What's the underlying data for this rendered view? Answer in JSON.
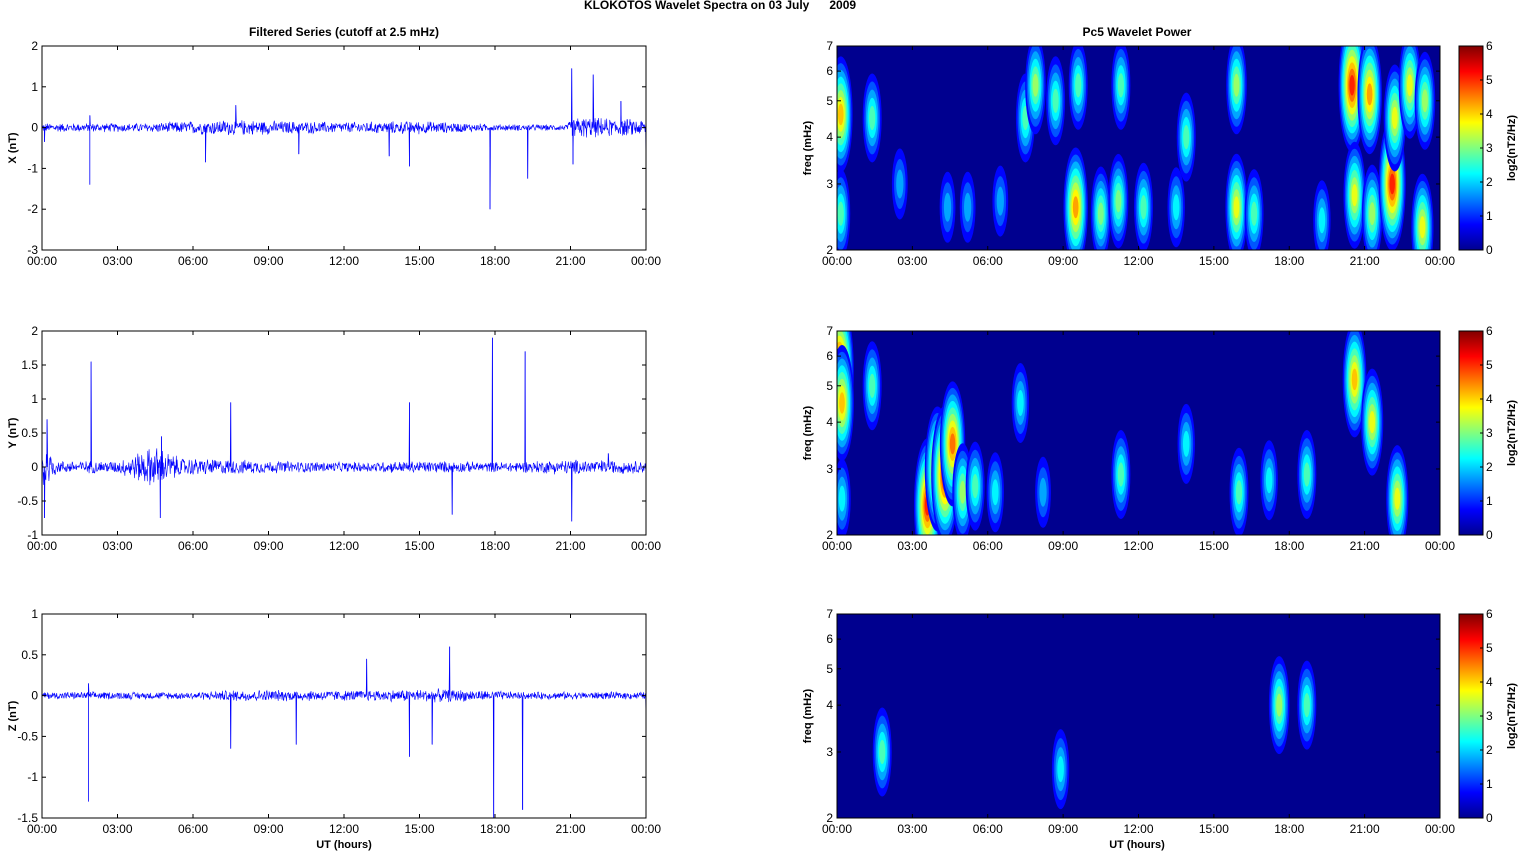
{
  "figure_title": "KLOKOTOS Wavelet Spectra on 03 July      2009",
  "left_title": "Filtered Series (cutoff at 2.5 mHz)",
  "right_title": "Pc5 Wavelet Power",
  "x_label": "UT (hours)",
  "x_tick_labels": [
    "00:00",
    "03:00",
    "06:00",
    "09:00",
    "12:00",
    "15:00",
    "18:00",
    "21:00",
    "00:00"
  ],
  "colors": {
    "trace": "#0000ff",
    "background_power": "#00008f"
  },
  "chart_data": [
    {
      "type": "line",
      "name": "X component",
      "ylabel": "X (nT)",
      "ylim": [
        -3,
        2
      ],
      "yticks": [
        "2",
        "1",
        "0",
        "-1",
        "-2",
        "-3"
      ],
      "ytick_values": [
        2,
        1,
        0,
        -1,
        -2,
        -3
      ],
      "xlim_hours": [
        0,
        24
      ],
      "noise_envelope": [
        {
          "x": 0.0,
          "amp": 0.12
        },
        {
          "x": 4.0,
          "amp": 0.12
        },
        {
          "x": 7.5,
          "amp": 0.22
        },
        {
          "x": 9.5,
          "amp": 0.18
        },
        {
          "x": 12.0,
          "amp": 0.15
        },
        {
          "x": 15.0,
          "amp": 0.18
        },
        {
          "x": 18.0,
          "amp": 0.09
        },
        {
          "x": 20.8,
          "amp": 0.08
        },
        {
          "x": 21.2,
          "amp": 0.3
        },
        {
          "x": 22.5,
          "amp": 0.25
        },
        {
          "x": 24.0,
          "amp": 0.22
        }
      ],
      "spikes": [
        {
          "x": 0.1,
          "y": -0.35
        },
        {
          "x": 1.9,
          "y": -1.4
        },
        {
          "x": 1.9,
          "y": 0.3
        },
        {
          "x": 6.5,
          "y": -0.85
        },
        {
          "x": 7.7,
          "y": 0.55
        },
        {
          "x": 10.2,
          "y": -0.65
        },
        {
          "x": 13.8,
          "y": -0.7
        },
        {
          "x": 14.6,
          "y": -0.95
        },
        {
          "x": 17.8,
          "y": -2.0
        },
        {
          "x": 19.3,
          "y": -1.25
        },
        {
          "x": 21.05,
          "y": 1.45
        },
        {
          "x": 21.1,
          "y": -0.9
        },
        {
          "x": 21.9,
          "y": 1.3
        },
        {
          "x": 23.0,
          "y": 0.65
        },
        {
          "x": 24.0,
          "y": -1.15
        }
      ]
    },
    {
      "type": "line",
      "name": "Y component",
      "ylabel": "Y (nT)",
      "ylim": [
        -1,
        2
      ],
      "yticks": [
        "2",
        "1.5",
        "1",
        "0.5",
        "0",
        "-0.5",
        "-1"
      ],
      "ytick_values": [
        2,
        1.5,
        1,
        0.5,
        0,
        -0.5,
        -1
      ],
      "xlim_hours": [
        0,
        24
      ],
      "noise_envelope": [
        {
          "x": 0.0,
          "amp": 0.45
        },
        {
          "x": 0.6,
          "amp": 0.1
        },
        {
          "x": 3.0,
          "amp": 0.1
        },
        {
          "x": 4.5,
          "amp": 0.35
        },
        {
          "x": 5.5,
          "amp": 0.15
        },
        {
          "x": 9.0,
          "amp": 0.1
        },
        {
          "x": 12.0,
          "amp": 0.08
        },
        {
          "x": 15.0,
          "amp": 0.1
        },
        {
          "x": 18.0,
          "amp": 0.08
        },
        {
          "x": 21.0,
          "amp": 0.12
        },
        {
          "x": 24.0,
          "amp": 0.1
        }
      ],
      "spikes": [
        {
          "x": 0.1,
          "y": -0.75
        },
        {
          "x": 0.2,
          "y": 0.7
        },
        {
          "x": 1.95,
          "y": 1.55
        },
        {
          "x": 4.7,
          "y": -0.75
        },
        {
          "x": 4.75,
          "y": 0.45
        },
        {
          "x": 7.5,
          "y": 0.95
        },
        {
          "x": 14.6,
          "y": 0.95
        },
        {
          "x": 16.3,
          "y": -0.7
        },
        {
          "x": 17.9,
          "y": 1.9
        },
        {
          "x": 19.2,
          "y": 1.7
        },
        {
          "x": 21.05,
          "y": -0.8
        },
        {
          "x": 22.5,
          "y": 0.2
        }
      ]
    },
    {
      "type": "line",
      "name": "Z component",
      "ylabel": "Z (nT)",
      "ylim": [
        -1.5,
        1
      ],
      "yticks": [
        "1",
        "0.5",
        "0",
        "-0.5",
        "-1",
        "-1.5"
      ],
      "ytick_values": [
        1,
        0.5,
        0,
        -0.5,
        -1,
        -1.5
      ],
      "xlim_hours": [
        0,
        24
      ],
      "noise_envelope": [
        {
          "x": 0.0,
          "amp": 0.05
        },
        {
          "x": 6.0,
          "amp": 0.05
        },
        {
          "x": 8.0,
          "amp": 0.08
        },
        {
          "x": 12.0,
          "amp": 0.07
        },
        {
          "x": 16.0,
          "amp": 0.09
        },
        {
          "x": 19.0,
          "amp": 0.05
        },
        {
          "x": 24.0,
          "amp": 0.05
        }
      ],
      "spikes": [
        {
          "x": 1.85,
          "y": -1.3
        },
        {
          "x": 1.85,
          "y": 0.15
        },
        {
          "x": 7.5,
          "y": -0.65
        },
        {
          "x": 10.1,
          "y": -0.6
        },
        {
          "x": 12.9,
          "y": 0.45
        },
        {
          "x": 14.6,
          "y": -0.75
        },
        {
          "x": 15.5,
          "y": -0.6
        },
        {
          "x": 16.2,
          "y": 0.6
        },
        {
          "x": 17.95,
          "y": -1.5
        },
        {
          "x": 19.1,
          "y": -1.4
        },
        {
          "x": 24.0,
          "y": -0.3
        }
      ]
    },
    {
      "type": "heatmap",
      "name": "X Pc5 wavelet power",
      "ylabel": "freq (mHz)",
      "scale": "log",
      "ylim": [
        2,
        7
      ],
      "yticks": [
        "2",
        "3",
        "4",
        "5",
        "6",
        "7"
      ],
      "ytick_values": [
        2,
        3,
        4,
        5,
        6,
        7
      ],
      "xlim_hours": [
        0,
        24
      ],
      "colorbar": {
        "label": "log2(nT2/Hz)",
        "ticks": [
          "0",
          "1",
          "2",
          "3",
          "4",
          "5",
          "6"
        ],
        "range": [
          0,
          6
        ]
      },
      "blobs": [
        {
          "t": 0.15,
          "f": 4.6,
          "p": 4.0
        },
        {
          "t": 0.15,
          "f": 2.5,
          "p": 2.5
        },
        {
          "t": 1.4,
          "f": 4.5,
          "p": 2.5
        },
        {
          "t": 2.5,
          "f": 3.0,
          "p": 1.5
        },
        {
          "t": 4.4,
          "f": 2.6,
          "p": 1.5
        },
        {
          "t": 5.2,
          "f": 2.6,
          "p": 1.5
        },
        {
          "t": 6.5,
          "f": 2.7,
          "p": 1.5
        },
        {
          "t": 7.5,
          "f": 4.5,
          "p": 2.5
        },
        {
          "t": 7.9,
          "f": 5.5,
          "p": 3.0
        },
        {
          "t": 8.7,
          "f": 5.0,
          "p": 2.5
        },
        {
          "t": 9.5,
          "f": 2.6,
          "p": 4.2
        },
        {
          "t": 9.6,
          "f": 5.5,
          "p": 2.5
        },
        {
          "t": 10.5,
          "f": 2.5,
          "p": 2.8
        },
        {
          "t": 11.2,
          "f": 2.7,
          "p": 2.8
        },
        {
          "t": 11.3,
          "f": 5.5,
          "p": 2.5
        },
        {
          "t": 12.2,
          "f": 2.6,
          "p": 2.5
        },
        {
          "t": 13.5,
          "f": 2.6,
          "p": 2.0
        },
        {
          "t": 13.9,
          "f": 4.0,
          "p": 2.5
        },
        {
          "t": 15.9,
          "f": 2.6,
          "p": 3.5
        },
        {
          "t": 15.9,
          "f": 5.5,
          "p": 3.0
        },
        {
          "t": 16.6,
          "f": 2.5,
          "p": 2.5
        },
        {
          "t": 19.3,
          "f": 2.4,
          "p": 2.0
        },
        {
          "t": 20.5,
          "f": 5.5,
          "p": 5.0
        },
        {
          "t": 20.6,
          "f": 2.8,
          "p": 3.5
        },
        {
          "t": 21.2,
          "f": 5.2,
          "p": 4.2
        },
        {
          "t": 21.3,
          "f": 2.5,
          "p": 3.0
        },
        {
          "t": 22.1,
          "f": 3.0,
          "p": 5.0
        },
        {
          "t": 22.2,
          "f": 4.5,
          "p": 3.5
        },
        {
          "t": 22.8,
          "f": 5.5,
          "p": 3.5
        },
        {
          "t": 23.3,
          "f": 2.3,
          "p": 3.5
        },
        {
          "t": 23.4,
          "f": 5.0,
          "p": 3.0
        }
      ]
    },
    {
      "type": "heatmap",
      "name": "Y Pc5 wavelet power",
      "ylabel": "freq (mHz)",
      "scale": "log",
      "ylim": [
        2,
        7
      ],
      "yticks": [
        "2",
        "3",
        "4",
        "5",
        "6",
        "7"
      ],
      "ytick_values": [
        2,
        3,
        4,
        5,
        6,
        7
      ],
      "xlim_hours": [
        0,
        24
      ],
      "colorbar": {
        "label": "log2(nT2/Hz)",
        "ticks": [
          "0",
          "1",
          "2",
          "3",
          "4",
          "5",
          "6"
        ],
        "range": [
          0,
          6
        ]
      },
      "blobs": [
        {
          "t": 0.1,
          "f": 5.5,
          "p": 5.5
        },
        {
          "t": 0.2,
          "f": 4.5,
          "p": 4.0
        },
        {
          "t": 0.2,
          "f": 2.5,
          "p": 2.0
        },
        {
          "t": 1.4,
          "f": 5.0,
          "p": 2.5
        },
        {
          "t": 3.6,
          "f": 2.4,
          "p": 5.0
        },
        {
          "t": 4.0,
          "f": 3.0,
          "p": 4.5
        },
        {
          "t": 4.3,
          "f": 2.9,
          "p": 5.2
        },
        {
          "t": 4.6,
          "f": 3.5,
          "p": 4.5
        },
        {
          "t": 5.0,
          "f": 2.6,
          "p": 3.0
        },
        {
          "t": 5.5,
          "f": 2.7,
          "p": 2.5
        },
        {
          "t": 6.3,
          "f": 2.6,
          "p": 2.0
        },
        {
          "t": 7.3,
          "f": 4.5,
          "p": 2.0
        },
        {
          "t": 8.2,
          "f": 2.6,
          "p": 1.5
        },
        {
          "t": 11.3,
          "f": 2.9,
          "p": 2.5
        },
        {
          "t": 13.9,
          "f": 3.5,
          "p": 2.0
        },
        {
          "t": 16.0,
          "f": 2.6,
          "p": 2.5
        },
        {
          "t": 17.2,
          "f": 2.8,
          "p": 2.0
        },
        {
          "t": 18.7,
          "f": 2.9,
          "p": 2.5
        },
        {
          "t": 20.6,
          "f": 5.2,
          "p": 4.0
        },
        {
          "t": 21.3,
          "f": 4.0,
          "p": 3.5
        },
        {
          "t": 22.3,
          "f": 2.5,
          "p": 3.5
        }
      ]
    },
    {
      "type": "heatmap",
      "name": "Z Pc5 wavelet power",
      "ylabel": "freq (mHz)",
      "scale": "log",
      "ylim": [
        2,
        7
      ],
      "yticks": [
        "2",
        "3",
        "4",
        "5",
        "6",
        "7"
      ],
      "ytick_values": [
        2,
        3,
        4,
        5,
        6,
        7
      ],
      "xlim_hours": [
        0,
        24
      ],
      "colorbar": {
        "label": "log2(nT2/Hz)",
        "ticks": [
          "0",
          "1",
          "2",
          "3",
          "4",
          "5",
          "6"
        ],
        "range": [
          0,
          6
        ]
      },
      "blobs": [
        {
          "t": 1.8,
          "f": 3.0,
          "p": 2.5
        },
        {
          "t": 8.9,
          "f": 2.7,
          "p": 2.0
        },
        {
          "t": 17.6,
          "f": 4.0,
          "p": 3.0
        },
        {
          "t": 18.7,
          "f": 4.0,
          "p": 2.5
        }
      ]
    }
  ]
}
